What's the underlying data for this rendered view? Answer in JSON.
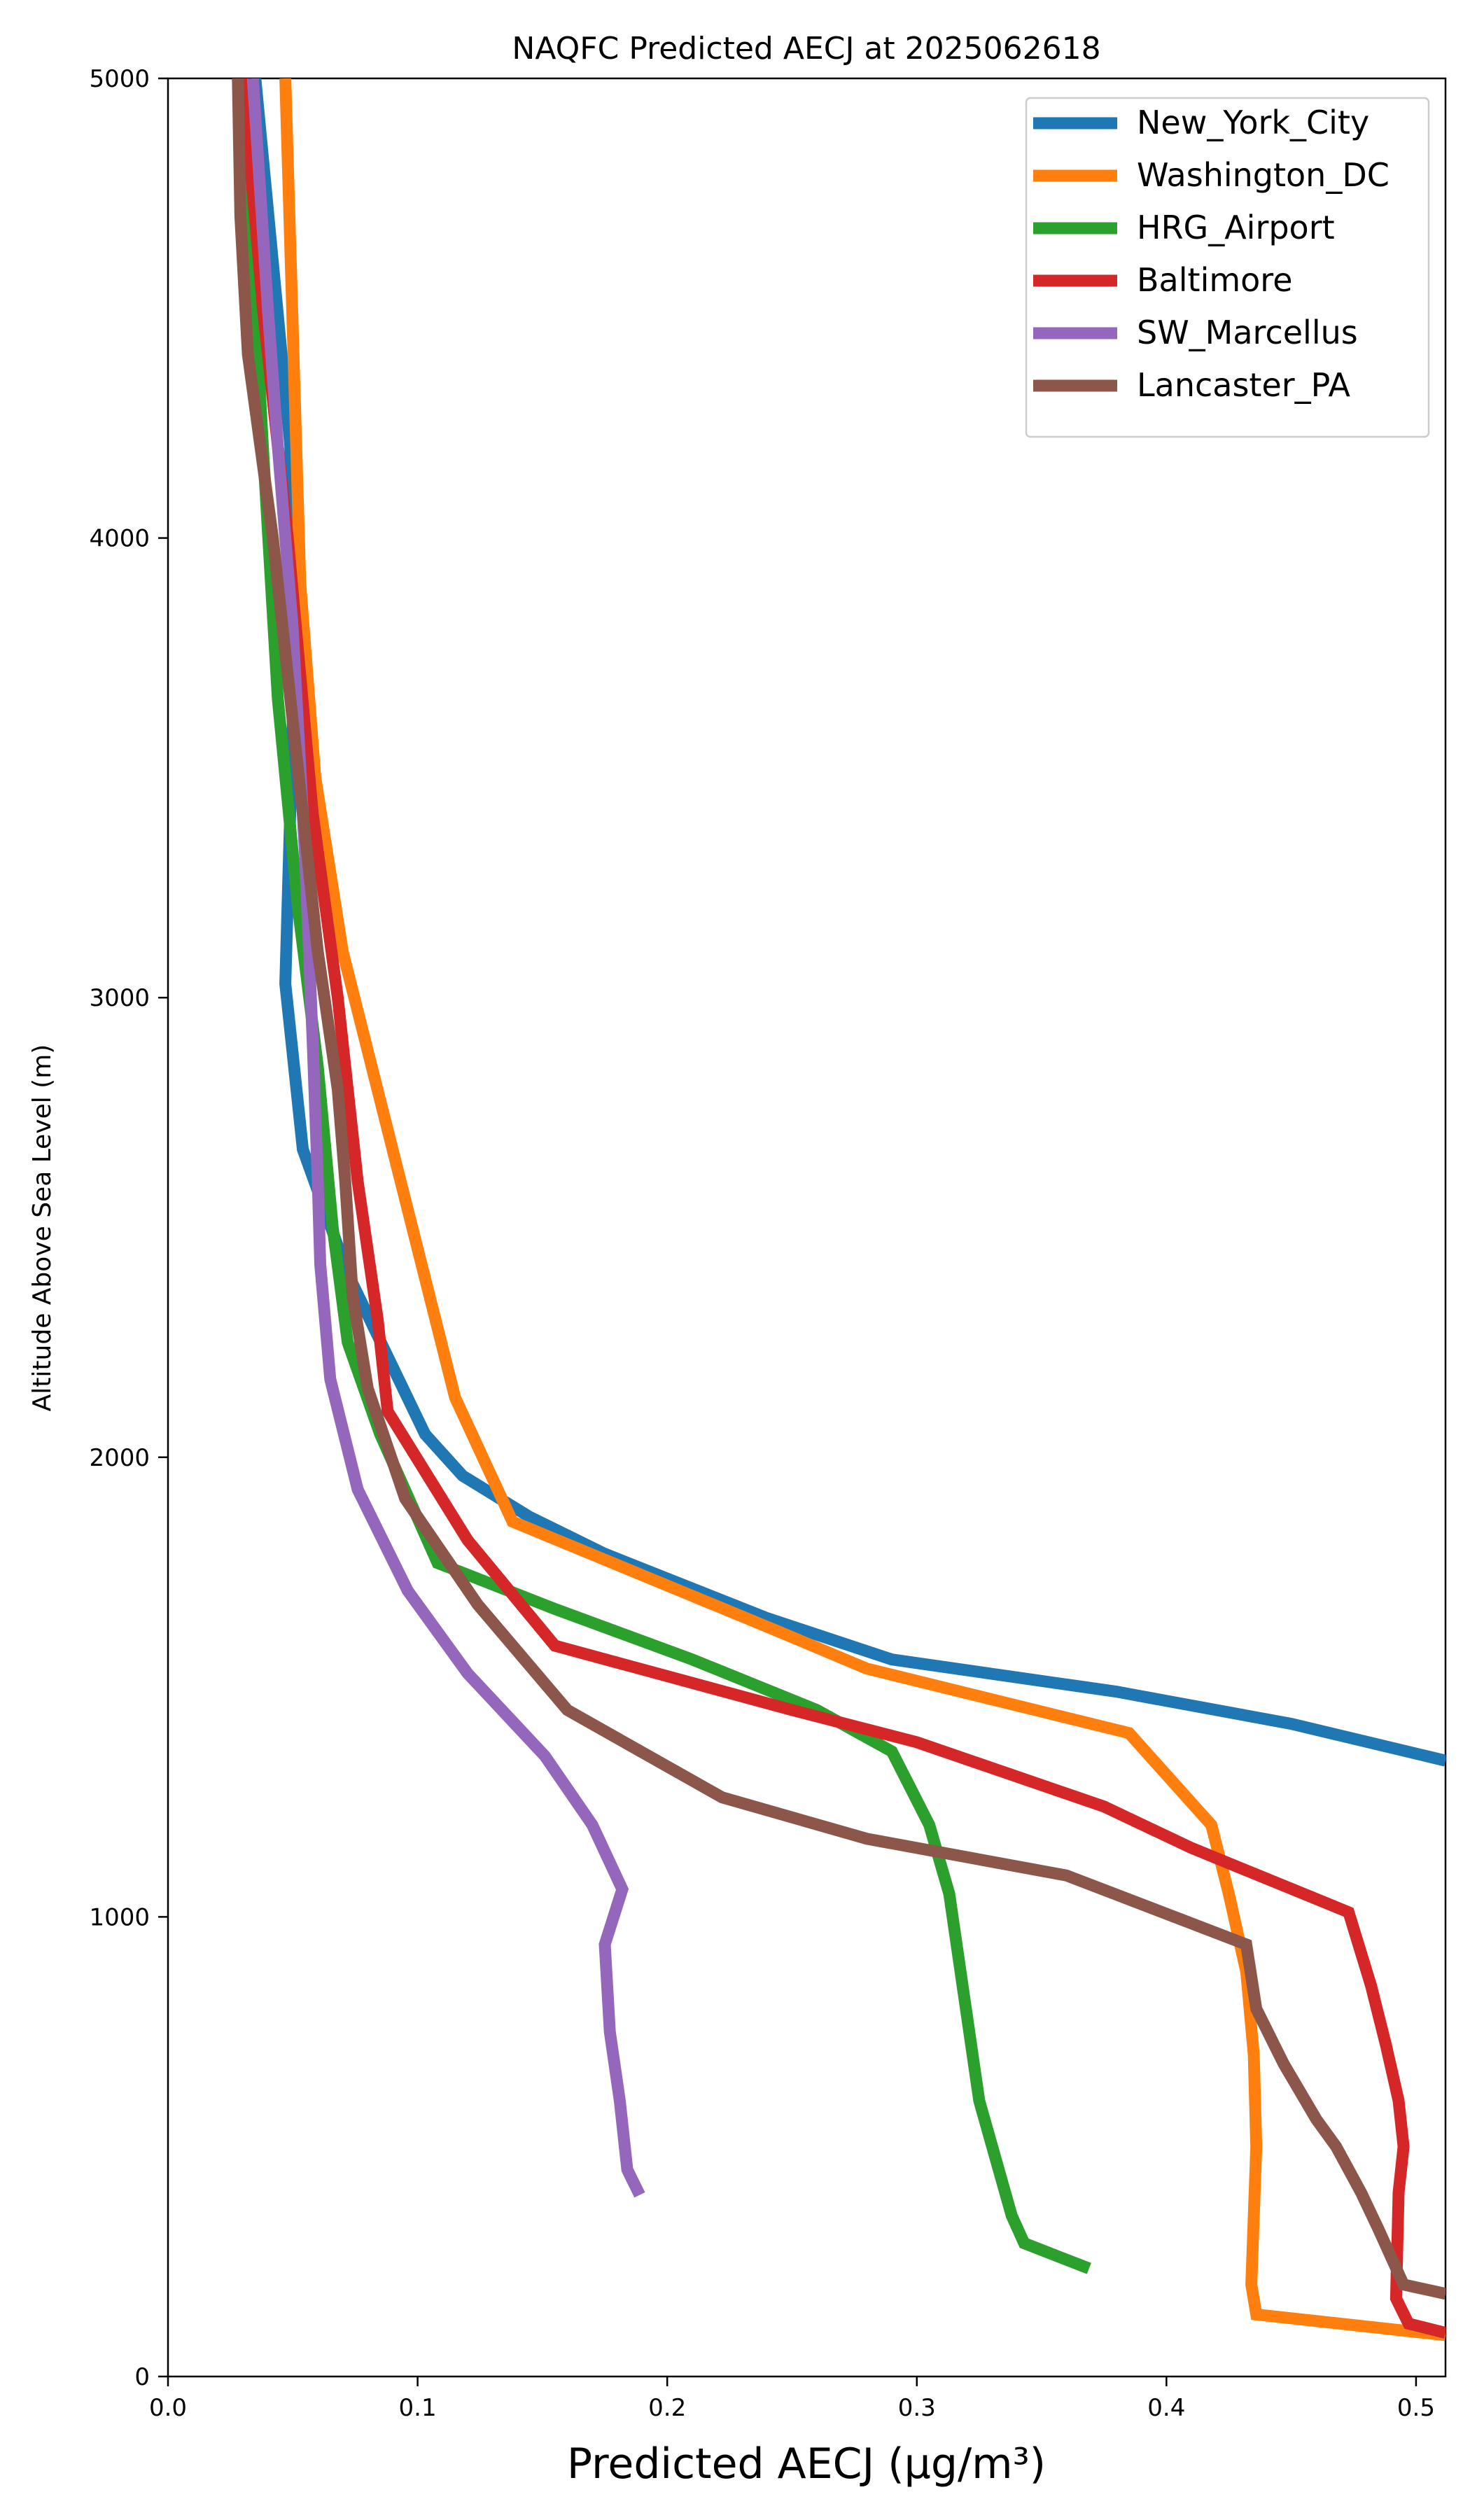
{
  "chart_data": {
    "type": "line",
    "title": "NAQFC Predicted AECJ at 2025062618",
    "xlabel": "Predicted AECJ (μg/m³)",
    "ylabel": "Altitude Above Sea Level (m)",
    "xlim": [
      0.0,
      0.5118
    ],
    "ylim": [
      0,
      5000
    ],
    "xticks": [
      0.0,
      0.1,
      0.2,
      0.3,
      0.4,
      0.5
    ],
    "xtick_labels": [
      "0.0",
      "0.1",
      "0.2",
      "0.3",
      "0.4",
      "0.5"
    ],
    "yticks": [
      0,
      1000,
      2000,
      3000,
      4000,
      5000
    ],
    "ytick_labels": [
      "0",
      "1000",
      "2000",
      "3000",
      "4000",
      "5000"
    ],
    "grid": false,
    "legend_position": "top-right",
    "series": [
      {
        "name": "New_York_City",
        "color": "#1f77b4",
        "points": [
          [
            0.5118,
            1340
          ],
          [
            0.45,
            1420
          ],
          [
            0.38,
            1490
          ],
          [
            0.29,
            1560
          ],
          [
            0.24,
            1650
          ],
          [
            0.175,
            1790
          ],
          [
            0.145,
            1870
          ],
          [
            0.118,
            1960
          ],
          [
            0.103,
            2050
          ],
          [
            0.072,
            2400
          ],
          [
            0.054,
            2670
          ],
          [
            0.047,
            3030
          ],
          [
            0.05,
            3600
          ],
          [
            0.049,
            4200
          ],
          [
            0.035,
            5000
          ]
        ]
      },
      {
        "name": "Washington_DC",
        "color": "#ff7f0e",
        "points": [
          [
            0.5118,
            90
          ],
          [
            0.436,
            135
          ],
          [
            0.434,
            200
          ],
          [
            0.436,
            500
          ],
          [
            0.435,
            700
          ],
          [
            0.432,
            880
          ],
          [
            0.425,
            1050
          ],
          [
            0.418,
            1200
          ],
          [
            0.385,
            1400
          ],
          [
            0.28,
            1540
          ],
          [
            0.245,
            1620
          ],
          [
            0.138,
            1860
          ],
          [
            0.115,
            2130
          ],
          [
            0.07,
            3100
          ],
          [
            0.059,
            3480
          ],
          [
            0.053,
            3900
          ],
          [
            0.047,
            5000
          ]
        ]
      },
      {
        "name": "HRG_Airport",
        "color": "#2ca02c",
        "points": [
          [
            0.369,
            235
          ],
          [
            0.343,
            290
          ],
          [
            0.338,
            350
          ],
          [
            0.325,
            600
          ],
          [
            0.313,
            1050
          ],
          [
            0.305,
            1200
          ],
          [
            0.29,
            1360
          ],
          [
            0.26,
            1450
          ],
          [
            0.21,
            1560
          ],
          [
            0.155,
            1670
          ],
          [
            0.108,
            1770
          ],
          [
            0.085,
            2050
          ],
          [
            0.072,
            2250
          ],
          [
            0.066,
            2500
          ],
          [
            0.06,
            2850
          ],
          [
            0.052,
            3200
          ],
          [
            0.044,
            3650
          ],
          [
            0.038,
            4200
          ],
          [
            0.03,
            5000
          ]
        ]
      },
      {
        "name": "Baltimore",
        "color": "#d62728",
        "points": [
          [
            0.5118,
            95
          ],
          [
            0.497,
            115
          ],
          [
            0.492,
            170
          ],
          [
            0.493,
            400
          ],
          [
            0.495,
            500
          ],
          [
            0.493,
            600
          ],
          [
            0.488,
            720
          ],
          [
            0.482,
            850
          ],
          [
            0.473,
            1010
          ],
          [
            0.41,
            1150
          ],
          [
            0.375,
            1240
          ],
          [
            0.3,
            1380
          ],
          [
            0.25,
            1450
          ],
          [
            0.155,
            1590
          ],
          [
            0.12,
            1820
          ],
          [
            0.088,
            2100
          ],
          [
            0.084,
            2300
          ],
          [
            0.076,
            2600
          ],
          [
            0.068,
            3000
          ],
          [
            0.058,
            3400
          ],
          [
            0.048,
            4000
          ],
          [
            0.038,
            4500
          ],
          [
            0.03,
            5000
          ]
        ]
      },
      {
        "name": "SW_Marcellus",
        "color": "#9467bd",
        "points": [
          [
            0.189,
            395
          ],
          [
            0.184,
            450
          ],
          [
            0.181,
            600
          ],
          [
            0.177,
            750
          ],
          [
            0.175,
            940
          ],
          [
            0.182,
            1060
          ],
          [
            0.17,
            1200
          ],
          [
            0.151,
            1350
          ],
          [
            0.12,
            1530
          ],
          [
            0.096,
            1710
          ],
          [
            0.076,
            1930
          ],
          [
            0.065,
            2170
          ],
          [
            0.061,
            2420
          ],
          [
            0.06,
            2600
          ],
          [
            0.058,
            2900
          ],
          [
            0.055,
            3300
          ],
          [
            0.05,
            3800
          ],
          [
            0.044,
            4200
          ],
          [
            0.04,
            4500
          ],
          [
            0.034,
            5000
          ]
        ]
      },
      {
        "name": "Lancaster_PA",
        "color": "#8c564b",
        "points": [
          [
            0.5118,
            180
          ],
          [
            0.495,
            200
          ],
          [
            0.485,
            320
          ],
          [
            0.478,
            400
          ],
          [
            0.468,
            500
          ],
          [
            0.46,
            560
          ],
          [
            0.447,
            680
          ],
          [
            0.436,
            800
          ],
          [
            0.432,
            940
          ],
          [
            0.36,
            1090
          ],
          [
            0.28,
            1170
          ],
          [
            0.222,
            1260
          ],
          [
            0.16,
            1450
          ],
          [
            0.124,
            1680
          ],
          [
            0.095,
            1910
          ],
          [
            0.08,
            2150
          ],
          [
            0.074,
            2350
          ],
          [
            0.071,
            2600
          ],
          [
            0.068,
            2800
          ],
          [
            0.06,
            3100
          ],
          [
            0.05,
            3600
          ],
          [
            0.042,
            4000
          ],
          [
            0.032,
            4400
          ],
          [
            0.029,
            4700
          ],
          [
            0.028,
            5000
          ]
        ]
      }
    ]
  }
}
